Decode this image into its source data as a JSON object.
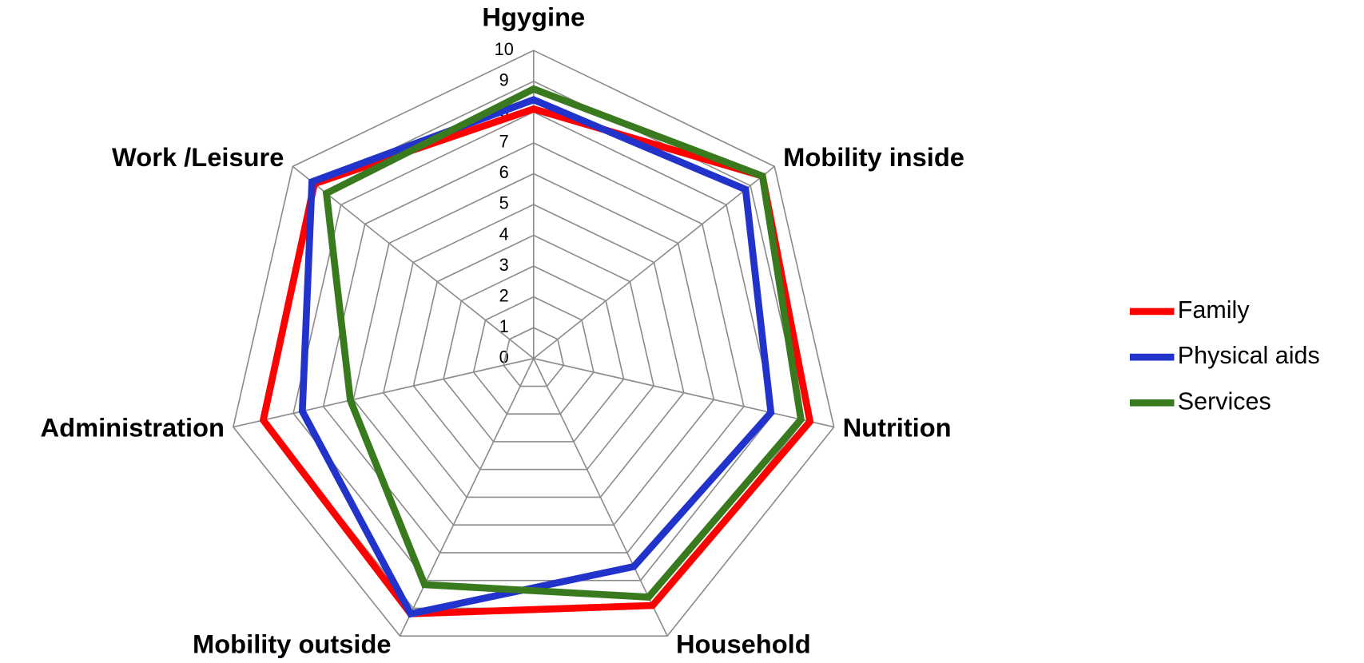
{
  "chart_data": {
    "type": "radar",
    "categories": [
      "Hgygine",
      "Mobility inside",
      "Nutrition",
      "Household",
      "Mobility outside",
      "Administration",
      "Work /Leisure"
    ],
    "series": [
      {
        "name": "Family",
        "color": "#ff0000",
        "values": [
          8.1,
          9.5,
          9.2,
          8.9,
          9.2,
          9.0,
          9.1
        ]
      },
      {
        "name": "Physical aids",
        "color": "#2233cc",
        "values": [
          8.4,
          8.8,
          7.9,
          7.5,
          9.2,
          7.7,
          9.2
        ]
      },
      {
        "name": "Services",
        "color": "#3a7a1e",
        "values": [
          8.75,
          9.5,
          8.9,
          8.6,
          8.15,
          6.1,
          8.6
        ]
      }
    ],
    "ylim": [
      0,
      10
    ],
    "yticks": [
      0,
      1,
      2,
      3,
      4,
      5,
      6,
      7,
      8,
      9,
      10
    ],
    "grid": true,
    "legend": "right"
  }
}
